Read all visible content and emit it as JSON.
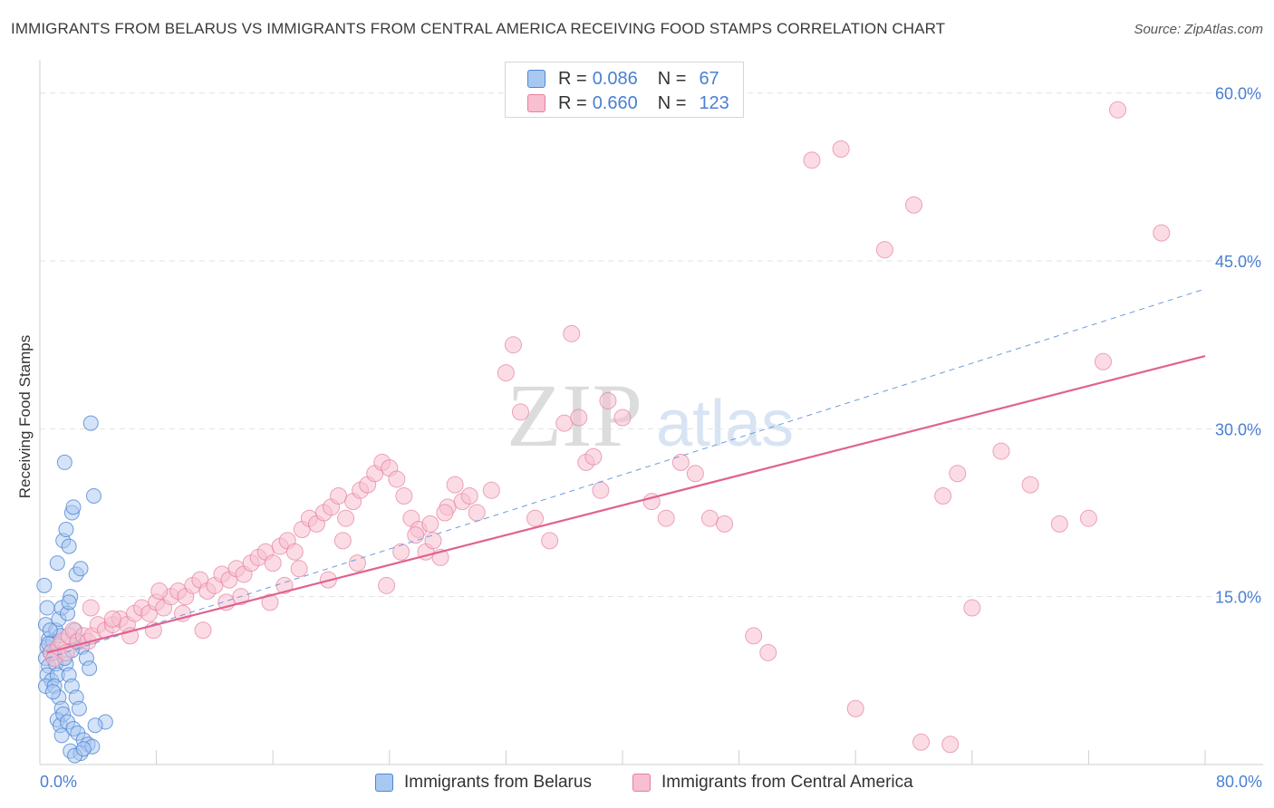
{
  "header": {
    "title": "IMMIGRANTS FROM BELARUS VS IMMIGRANTS FROM CENTRAL AMERICA RECEIVING FOOD STAMPS CORRELATION CHART",
    "source": "Source: ZipAtlas.com"
  },
  "legend": {
    "row1": {
      "r_label": "R =",
      "r_value": "0.086",
      "n_label": "N =",
      "n_value": "67"
    },
    "row2": {
      "r_label": "R =",
      "r_value": "0.660",
      "n_label": "N =",
      "n_value": "123"
    }
  },
  "watermark": {
    "zip": "ZIP",
    "atlas": "atlas"
  },
  "colors": {
    "belarus_fill": "#a9c8f0",
    "belarus_stroke": "#4f86d6",
    "central_fill": "#f7bfd0",
    "central_stroke": "#e57fa0",
    "central_trend": "#e0628e",
    "belarus_trend": "#6a9be0",
    "tick_label": "#4a7fd4",
    "grid": "#e2e2e2"
  },
  "chart_data": {
    "type": "scatter",
    "title": "IMMIGRANTS FROM BELARUS VS IMMIGRANTS FROM CENTRAL AMERICA RECEIVING FOOD STAMPS CORRELATION CHART",
    "xlabel": "",
    "ylabel": "Receiving Food Stamps",
    "xlim": [
      0,
      80
    ],
    "ylim": [
      0,
      62
    ],
    "x_tick_labels": [
      "0.0%",
      "80.0%"
    ],
    "y_ticks": [
      15,
      30,
      45,
      60
    ],
    "y_tick_labels": [
      "15.0%",
      "30.0%",
      "45.0%",
      "60.0%"
    ],
    "series": [
      {
        "name": "Immigrants from Belarus",
        "R": 0.086,
        "N": 67,
        "trend": {
          "style": "dashed",
          "x": [
            0.5,
            80
          ],
          "y": [
            9.5,
            42.5
          ]
        },
        "points": [
          [
            0.3,
            16.0
          ],
          [
            0.5,
            14.0
          ],
          [
            0.4,
            12.5
          ],
          [
            0.6,
            11.2
          ],
          [
            0.5,
            10.5
          ],
          [
            0.7,
            10.0
          ],
          [
            0.4,
            9.5
          ],
          [
            0.6,
            8.8
          ],
          [
            0.5,
            8.0
          ],
          [
            0.8,
            7.5
          ],
          [
            0.4,
            7.0
          ],
          [
            0.9,
            11.0
          ],
          [
            1.0,
            10.0
          ],
          [
            1.1,
            9.0
          ],
          [
            1.2,
            8.0
          ],
          [
            1.0,
            7.0
          ],
          [
            1.3,
            6.0
          ],
          [
            1.5,
            5.0
          ],
          [
            1.2,
            4.0
          ],
          [
            1.4,
            3.5
          ],
          [
            1.1,
            12.0
          ],
          [
            1.3,
            13.0
          ],
          [
            1.5,
            14.0
          ],
          [
            1.2,
            18.0
          ],
          [
            1.6,
            20.0
          ],
          [
            1.8,
            21.0
          ],
          [
            1.7,
            27.0
          ],
          [
            2.2,
            22.5
          ],
          [
            2.3,
            23.0
          ],
          [
            2.0,
            19.5
          ],
          [
            2.5,
            17.0
          ],
          [
            2.8,
            17.5
          ],
          [
            3.5,
            30.5
          ],
          [
            3.7,
            24.0
          ],
          [
            2.1,
            15.0
          ],
          [
            1.9,
            13.5
          ],
          [
            2.4,
            12.0
          ],
          [
            2.6,
            11.0
          ],
          [
            2.9,
            10.5
          ],
          [
            3.2,
            9.5
          ],
          [
            1.8,
            9.0
          ],
          [
            2.0,
            8.0
          ],
          [
            2.2,
            7.0
          ],
          [
            2.5,
            6.0
          ],
          [
            2.7,
            5.0
          ],
          [
            1.6,
            4.5
          ],
          [
            1.9,
            3.8
          ],
          [
            2.3,
            3.2
          ],
          [
            2.6,
            2.8
          ],
          [
            3.0,
            2.2
          ],
          [
            3.3,
            1.8
          ],
          [
            2.1,
            1.2
          ],
          [
            2.8,
            1.0
          ],
          [
            3.6,
            1.6
          ],
          [
            2.4,
            0.8
          ],
          [
            3.0,
            1.4
          ],
          [
            4.5,
            3.8
          ],
          [
            3.8,
            3.5
          ],
          [
            1.5,
            2.6
          ],
          [
            0.9,
            6.5
          ],
          [
            1.4,
            11.5
          ],
          [
            2.0,
            14.5
          ],
          [
            0.7,
            12.0
          ],
          [
            1.7,
            9.5
          ],
          [
            2.2,
            10.2
          ],
          [
            3.4,
            8.6
          ],
          [
            0.6,
            10.8
          ]
        ]
      },
      {
        "name": "Immigrants from Central America",
        "R": 0.66,
        "N": 123,
        "trend": {
          "style": "solid",
          "x": [
            0.5,
            80
          ],
          "y": [
            10.0,
            36.5
          ]
        },
        "points": [
          [
            0.8,
            10.0
          ],
          [
            1.0,
            9.5
          ],
          [
            1.3,
            10.5
          ],
          [
            1.5,
            11.0
          ],
          [
            1.8,
            10.0
          ],
          [
            2.0,
            11.5
          ],
          [
            2.3,
            12.0
          ],
          [
            2.6,
            11.0
          ],
          [
            3.0,
            11.5
          ],
          [
            3.3,
            11.0
          ],
          [
            3.6,
            11.5
          ],
          [
            4.0,
            12.5
          ],
          [
            4.5,
            12.0
          ],
          [
            5.0,
            12.5
          ],
          [
            5.5,
            13.0
          ],
          [
            6.0,
            12.5
          ],
          [
            6.5,
            13.5
          ],
          [
            7.0,
            14.0
          ],
          [
            7.5,
            13.5
          ],
          [
            8.0,
            14.5
          ],
          [
            8.5,
            14.0
          ],
          [
            9.0,
            15.0
          ],
          [
            9.5,
            15.5
          ],
          [
            10.0,
            15.0
          ],
          [
            10.5,
            16.0
          ],
          [
            11.0,
            16.5
          ],
          [
            11.5,
            15.5
          ],
          [
            12.0,
            16.0
          ],
          [
            12.5,
            17.0
          ],
          [
            13.0,
            16.5
          ],
          [
            13.5,
            17.5
          ],
          [
            14.0,
            17.0
          ],
          [
            14.5,
            18.0
          ],
          [
            15.0,
            18.5
          ],
          [
            15.5,
            19.0
          ],
          [
            16.0,
            18.0
          ],
          [
            16.5,
            19.5
          ],
          [
            17.0,
            20.0
          ],
          [
            17.5,
            19.0
          ],
          [
            18.0,
            21.0
          ],
          [
            18.5,
            22.0
          ],
          [
            19.0,
            21.5
          ],
          [
            19.5,
            22.5
          ],
          [
            20.0,
            23.0
          ],
          [
            20.5,
            24.0
          ],
          [
            21.0,
            22.0
          ],
          [
            21.5,
            23.5
          ],
          [
            22.0,
            24.5
          ],
          [
            22.5,
            25.0
          ],
          [
            23.0,
            26.0
          ],
          [
            23.5,
            27.0
          ],
          [
            24.0,
            26.5
          ],
          [
            24.5,
            25.5
          ],
          [
            25.0,
            24.0
          ],
          [
            25.5,
            22.0
          ],
          [
            26.0,
            21.0
          ],
          [
            26.5,
            19.0
          ],
          [
            27.0,
            20.0
          ],
          [
            27.5,
            18.5
          ],
          [
            28.0,
            23.0
          ],
          [
            28.5,
            25.0
          ],
          [
            29.0,
            23.5
          ],
          [
            29.5,
            24.0
          ],
          [
            30.0,
            22.5
          ],
          [
            31.0,
            24.5
          ],
          [
            32.0,
            35.0
          ],
          [
            32.5,
            37.5
          ],
          [
            33.0,
            31.5
          ],
          [
            34.0,
            22.0
          ],
          [
            35.0,
            20.0
          ],
          [
            36.0,
            30.5
          ],
          [
            36.5,
            38.5
          ],
          [
            37.0,
            31.0
          ],
          [
            37.5,
            27.0
          ],
          [
            38.0,
            27.5
          ],
          [
            38.5,
            24.5
          ],
          [
            39.0,
            32.5
          ],
          [
            40.0,
            31.0
          ],
          [
            42.0,
            23.5
          ],
          [
            43.0,
            22.0
          ],
          [
            44.0,
            27.0
          ],
          [
            45.0,
            26.0
          ],
          [
            46.0,
            22.0
          ],
          [
            47.0,
            21.5
          ],
          [
            49.0,
            11.5
          ],
          [
            50.0,
            10.0
          ],
          [
            53.0,
            54.0
          ],
          [
            55.0,
            55.0
          ],
          [
            58.0,
            46.0
          ],
          [
            60.0,
            50.0
          ],
          [
            62.0,
            24.0
          ],
          [
            63.0,
            26.0
          ],
          [
            64.0,
            14.0
          ],
          [
            66.0,
            28.0
          ],
          [
            68.0,
            25.0
          ],
          [
            72.0,
            22.0
          ],
          [
            74.0,
            58.5
          ],
          [
            77.0,
            47.5
          ],
          [
            73.0,
            36.0
          ],
          [
            70.0,
            21.5
          ],
          [
            60.5,
            2.0
          ],
          [
            62.5,
            1.8
          ],
          [
            56.0,
            5.0
          ],
          [
            3.5,
            14.0
          ],
          [
            5.0,
            13.0
          ],
          [
            6.2,
            11.5
          ],
          [
            7.8,
            12.0
          ],
          [
            8.2,
            15.5
          ],
          [
            9.8,
            13.5
          ],
          [
            11.2,
            12.0
          ],
          [
            12.8,
            14.5
          ],
          [
            13.8,
            15.0
          ],
          [
            15.8,
            14.5
          ],
          [
            16.8,
            16.0
          ],
          [
            17.8,
            17.5
          ],
          [
            19.8,
            16.5
          ],
          [
            20.8,
            20.0
          ],
          [
            21.8,
            18.0
          ],
          [
            23.8,
            16.0
          ],
          [
            24.8,
            19.0
          ],
          [
            25.8,
            20.5
          ],
          [
            26.8,
            21.5
          ],
          [
            27.8,
            22.5
          ]
        ]
      }
    ]
  },
  "bottom_legend": {
    "item1": "Immigrants from Belarus",
    "item2": "Immigrants from Central America"
  }
}
